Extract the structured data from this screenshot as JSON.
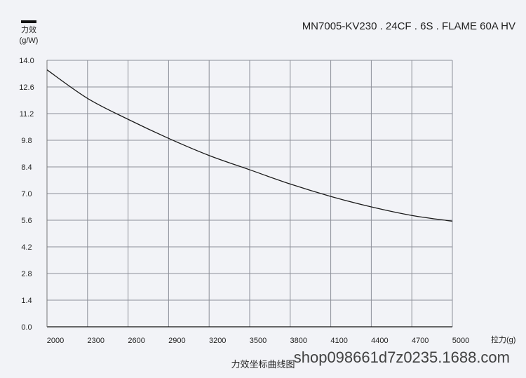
{
  "chart_data": {
    "type": "line",
    "title": "MN7005-KV230 . 24CF . 6S . FLAME 60A HV",
    "ylabel_line1": "力效",
    "ylabel_line2": "(g/W)",
    "xlabel": "拉力(g)",
    "caption": "力效坐标曲线图",
    "watermark": "shop098661d7z0235.1688.com",
    "xlim": [
      2000,
      5000
    ],
    "ylim": [
      0,
      14
    ],
    "x_ticks": [
      2000,
      2300,
      2600,
      2900,
      3200,
      3500,
      3800,
      4100,
      4400,
      4700,
      5000
    ],
    "x_tick_labels": [
      "2000",
      "2300",
      "2600",
      "2900",
      "3200",
      "3500",
      "3800",
      "4100",
      "4400",
      "4700",
      "5000"
    ],
    "y_ticks": [
      0,
      1.4,
      2.8,
      4.2,
      5.6,
      7.0,
      8.4,
      9.8,
      11.2,
      12.6,
      14.0
    ],
    "y_tick_labels": [
      "0.0",
      "1.4",
      "2.8",
      "4.2",
      "5.6",
      "7.0",
      "8.4",
      "9.8",
      "11.2",
      "12.6",
      "14.0"
    ],
    "grid": true,
    "series": [
      {
        "x": [
          2000,
          2300,
          2600,
          2900,
          3200,
          3500,
          3800,
          4100,
          4400,
          4700,
          5000
        ],
        "y": [
          13.5,
          12.0,
          10.9,
          9.9,
          9.0,
          8.25,
          7.5,
          6.85,
          6.3,
          5.85,
          5.55
        ],
        "color": "#1a1a1a"
      }
    ]
  }
}
